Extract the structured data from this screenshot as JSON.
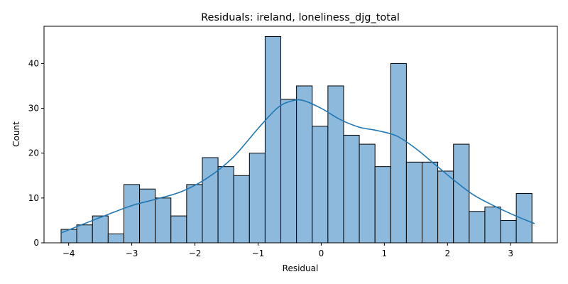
{
  "chart_data": {
    "type": "bar",
    "subtype": "histogram with KDE",
    "title": "Residuals: ireland, loneliness_djg_total",
    "xlabel": "Residual",
    "ylabel": "Count",
    "xlim": [
      -4.39,
      3.74
    ],
    "ylim": [
      0,
      48.3
    ],
    "x_ticks": [
      -4,
      -3,
      -2,
      -1,
      0,
      1,
      2,
      3
    ],
    "y_ticks": [
      0,
      10,
      20,
      30,
      40
    ],
    "grid": false,
    "bar_color": "#8cb9dc",
    "edge_color": "#000000",
    "line_color": "#1f77b4",
    "bin_start": -4.12,
    "bin_width": 0.2486,
    "counts": [
      3,
      4,
      6,
      2,
      13,
      12,
      10,
      6,
      13,
      19,
      17,
      15,
      20,
      46,
      32,
      35,
      26,
      35,
      24,
      22,
      17,
      40,
      18,
      18,
      16,
      22,
      7,
      8,
      5,
      11
    ],
    "kde": {
      "x": [
        -4.12,
        -3.8,
        -3.4,
        -3.0,
        -2.6,
        -2.2,
        -1.8,
        -1.4,
        -1.0,
        -0.7,
        -0.5,
        -0.3,
        0.0,
        0.3,
        0.6,
        0.9,
        1.2,
        1.5,
        1.8,
        2.1,
        2.4,
        2.7,
        3.0,
        3.25,
        3.38
      ],
      "y": [
        2.2,
        4.0,
        6.2,
        8.3,
        9.8,
        11.5,
        14.5,
        19.0,
        25.5,
        30.0,
        31.5,
        31.8,
        30.0,
        27.5,
        25.8,
        25.0,
        23.8,
        21.0,
        17.5,
        14.0,
        10.8,
        8.5,
        6.5,
        5.0,
        4.3
      ]
    }
  }
}
